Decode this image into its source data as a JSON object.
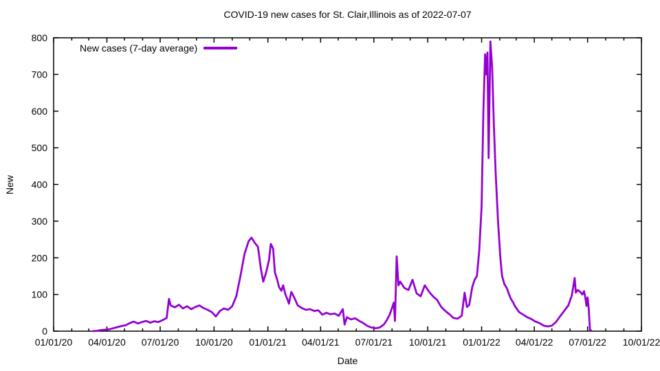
{
  "chart_data": {
    "type": "line",
    "title": "COVID-19 new cases for St. Clair,Illinois as of 2022-07-07",
    "xlabel": "Date",
    "ylabel": "New",
    "background": "#ffffff",
    "border_color": "#000000",
    "grid": false,
    "legend_position": "top-left-inside",
    "ylim": [
      0,
      800
    ],
    "xlim": [
      "01/01/20",
      "10/01/22"
    ],
    "y_ticks": [
      0,
      100,
      200,
      300,
      400,
      500,
      600,
      700,
      800
    ],
    "x_ticks": [
      "01/01/20",
      "04/01/20",
      "07/01/20",
      "10/01/20",
      "01/01/21",
      "04/01/21",
      "07/01/21",
      "10/01/21",
      "01/01/22",
      "04/01/22",
      "07/01/22",
      "10/01/22"
    ],
    "x_minor_tick_interval": "month",
    "series": [
      {
        "name": "New cases (7-day average)",
        "color": "#9400d3",
        "points": [
          [
            "2020-03-08",
            0
          ],
          [
            "2020-03-15",
            1
          ],
          [
            "2020-03-22",
            3
          ],
          [
            "2020-03-29",
            4
          ],
          [
            "2020-04-05",
            5
          ],
          [
            "2020-04-12",
            8
          ],
          [
            "2020-04-19",
            11
          ],
          [
            "2020-04-26",
            14
          ],
          [
            "2020-05-03",
            16
          ],
          [
            "2020-05-10",
            22
          ],
          [
            "2020-05-17",
            26
          ],
          [
            "2020-05-24",
            21
          ],
          [
            "2020-05-31",
            25
          ],
          [
            "2020-06-07",
            28
          ],
          [
            "2020-06-14",
            23
          ],
          [
            "2020-06-21",
            27
          ],
          [
            "2020-06-28",
            25
          ],
          [
            "2020-07-05",
            30
          ],
          [
            "2020-07-12",
            36
          ],
          [
            "2020-07-16",
            88
          ],
          [
            "2020-07-19",
            70
          ],
          [
            "2020-07-26",
            65
          ],
          [
            "2020-08-02",
            72
          ],
          [
            "2020-08-09",
            62
          ],
          [
            "2020-08-16",
            68
          ],
          [
            "2020-08-23",
            60
          ],
          [
            "2020-08-30",
            66
          ],
          [
            "2020-09-06",
            70
          ],
          [
            "2020-09-13",
            63
          ],
          [
            "2020-09-20",
            58
          ],
          [
            "2020-09-27",
            52
          ],
          [
            "2020-10-04",
            40
          ],
          [
            "2020-10-11",
            55
          ],
          [
            "2020-10-18",
            62
          ],
          [
            "2020-10-25",
            58
          ],
          [
            "2020-11-01",
            68
          ],
          [
            "2020-11-08",
            95
          ],
          [
            "2020-11-15",
            150
          ],
          [
            "2020-11-22",
            210
          ],
          [
            "2020-11-29",
            245
          ],
          [
            "2020-12-04",
            255
          ],
          [
            "2020-12-10",
            240
          ],
          [
            "2020-12-15",
            230
          ],
          [
            "2020-12-20",
            170
          ],
          [
            "2020-12-24",
            135
          ],
          [
            "2020-12-29",
            160
          ],
          [
            "2021-01-03",
            195
          ],
          [
            "2021-01-06",
            238
          ],
          [
            "2021-01-10",
            225
          ],
          [
            "2021-01-13",
            160
          ],
          [
            "2021-01-17",
            140
          ],
          [
            "2021-01-20",
            120
          ],
          [
            "2021-01-24",
            110
          ],
          [
            "2021-01-27",
            125
          ],
          [
            "2021-01-31",
            100
          ],
          [
            "2021-02-03",
            88
          ],
          [
            "2021-02-06",
            75
          ],
          [
            "2021-02-10",
            107
          ],
          [
            "2021-02-14",
            95
          ],
          [
            "2021-02-21",
            70
          ],
          [
            "2021-02-28",
            63
          ],
          [
            "2021-03-07",
            58
          ],
          [
            "2021-03-14",
            60
          ],
          [
            "2021-03-21",
            55
          ],
          [
            "2021-03-28",
            57
          ],
          [
            "2021-04-04",
            45
          ],
          [
            "2021-04-11",
            50
          ],
          [
            "2021-04-18",
            46
          ],
          [
            "2021-04-25",
            48
          ],
          [
            "2021-05-02",
            42
          ],
          [
            "2021-05-09",
            60
          ],
          [
            "2021-05-12",
            18
          ],
          [
            "2021-05-16",
            38
          ],
          [
            "2021-05-23",
            32
          ],
          [
            "2021-05-30",
            35
          ],
          [
            "2021-06-06",
            28
          ],
          [
            "2021-06-13",
            22
          ],
          [
            "2021-06-20",
            14
          ],
          [
            "2021-06-27",
            10
          ],
          [
            "2021-07-04",
            8
          ],
          [
            "2021-07-11",
            10
          ],
          [
            "2021-07-18",
            18
          ],
          [
            "2021-07-23",
            30
          ],
          [
            "2021-07-28",
            45
          ],
          [
            "2021-08-01",
            63
          ],
          [
            "2021-08-04",
            78
          ],
          [
            "2021-08-06",
            28
          ],
          [
            "2021-08-09",
            204
          ],
          [
            "2021-08-12",
            125
          ],
          [
            "2021-08-15",
            135
          ],
          [
            "2021-08-22",
            118
          ],
          [
            "2021-08-29",
            112
          ],
          [
            "2021-09-05",
            140
          ],
          [
            "2021-09-12",
            103
          ],
          [
            "2021-09-19",
            95
          ],
          [
            "2021-09-26",
            125
          ],
          [
            "2021-10-03",
            108
          ],
          [
            "2021-10-10",
            95
          ],
          [
            "2021-10-17",
            85
          ],
          [
            "2021-10-24",
            66
          ],
          [
            "2021-10-31",
            55
          ],
          [
            "2021-11-07",
            46
          ],
          [
            "2021-11-14",
            36
          ],
          [
            "2021-11-21",
            34
          ],
          [
            "2021-11-28",
            42
          ],
          [
            "2021-12-03",
            105
          ],
          [
            "2021-12-07",
            66
          ],
          [
            "2021-12-11",
            72
          ],
          [
            "2021-12-16",
            120
          ],
          [
            "2021-12-20",
            140
          ],
          [
            "2021-12-24",
            150
          ],
          [
            "2021-12-28",
            220
          ],
          [
            "2022-01-01",
            340
          ],
          [
            "2022-01-04",
            600
          ],
          [
            "2022-01-07",
            755
          ],
          [
            "2022-01-09",
            700
          ],
          [
            "2022-01-11",
            760
          ],
          [
            "2022-01-13",
            472
          ],
          [
            "2022-01-16",
            790
          ],
          [
            "2022-01-19",
            720
          ],
          [
            "2022-01-22",
            560
          ],
          [
            "2022-01-25",
            430
          ],
          [
            "2022-01-29",
            300
          ],
          [
            "2022-02-02",
            200
          ],
          [
            "2022-02-05",
            150
          ],
          [
            "2022-02-09",
            128
          ],
          [
            "2022-02-13",
            118
          ],
          [
            "2022-02-17",
            100
          ],
          [
            "2022-02-20",
            88
          ],
          [
            "2022-02-24",
            78
          ],
          [
            "2022-02-27",
            68
          ],
          [
            "2022-03-06",
            52
          ],
          [
            "2022-03-13",
            45
          ],
          [
            "2022-03-20",
            38
          ],
          [
            "2022-03-27",
            33
          ],
          [
            "2022-04-03",
            26
          ],
          [
            "2022-04-10",
            22
          ],
          [
            "2022-04-17",
            15
          ],
          [
            "2022-04-24",
            13
          ],
          [
            "2022-05-01",
            15
          ],
          [
            "2022-05-08",
            25
          ],
          [
            "2022-05-15",
            40
          ],
          [
            "2022-05-22",
            55
          ],
          [
            "2022-05-29",
            70
          ],
          [
            "2022-06-04",
            97
          ],
          [
            "2022-06-09",
            145
          ],
          [
            "2022-06-11",
            105
          ],
          [
            "2022-06-14",
            112
          ],
          [
            "2022-06-18",
            108
          ],
          [
            "2022-06-22",
            100
          ],
          [
            "2022-06-25",
            109
          ],
          [
            "2022-06-27",
            94
          ],
          [
            "2022-06-29",
            69
          ],
          [
            "2022-07-01",
            92
          ],
          [
            "2022-07-03",
            60
          ],
          [
            "2022-07-05",
            3
          ],
          [
            "2022-07-07",
            2
          ]
        ]
      }
    ]
  }
}
